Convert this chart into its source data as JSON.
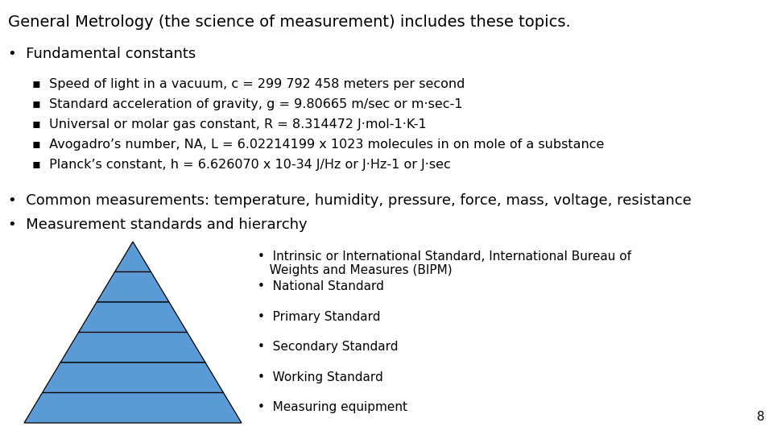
{
  "title": "General Metrology (the science of measurement) includes these topics.",
  "bg_color": "#ffffff",
  "text_color": "#000000",
  "bullet1": "Fundamental constants",
  "sub_bullets": [
    "Speed of light in a vacuum, c = 299 792 458 meters per second",
    "Standard acceleration of gravity, g = 9.80665 m/sec or m·sec-1",
    "Universal or molar gas constant, R = 8.314472 J·mol-1·K-1",
    "Avogadro’s number, NA, L = 6.02214199 x 1023 molecules in on mole of a substance",
    "Planck’s constant, h = 6.626070 x 10-34 J/Hz or J·Hz-1 or J·sec"
  ],
  "bullet2": "Common measurements: temperature, humidity, pressure, force, mass, voltage, resistance",
  "bullet3": "Measurement standards and hierarchy",
  "pyramid_items": [
    "Intrinsic or International Standard, International Bureau of\n   Weights and Measures (BIPM)",
    "National Standard",
    "Primary Standard",
    "Secondary Standard",
    "Working Standard",
    "Measuring equipment"
  ],
  "pyramid_color": "#5b9bd5",
  "pyramid_edge_color": "#000000",
  "page_number": "8",
  "title_fontsize": 14,
  "main_fontsize": 13,
  "sub_fontsize": 11.5,
  "pyramid_text_fontsize": 11
}
